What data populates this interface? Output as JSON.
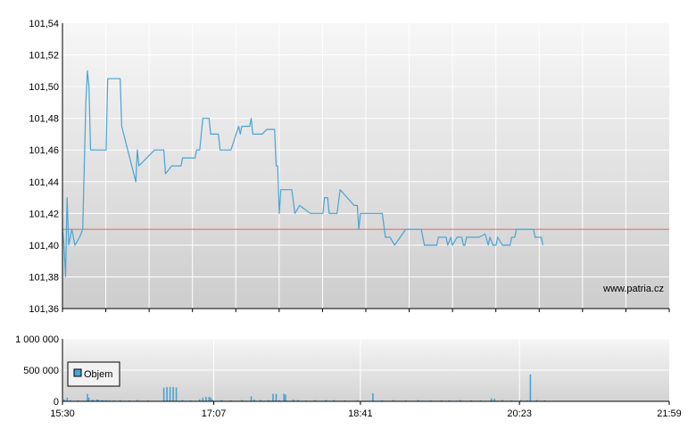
{
  "chart_data": [
    {
      "type": "line",
      "title": "",
      "xlabel": "",
      "ylabel": "",
      "ylim": [
        101.36,
        101.54
      ],
      "y_ticks": [
        "101,36",
        "101,38",
        "101,40",
        "101,42",
        "101,44",
        "101,46",
        "101,48",
        "101,50",
        "101,52",
        "101,54"
      ],
      "x_ticks": [
        "15:30",
        "17:07",
        "18:41",
        "20:23",
        "21:59"
      ],
      "grid": true,
      "watermark": "www.patria.cz",
      "reference_line": {
        "value": 101.41,
        "color": "#e06666"
      },
      "series": [
        {
          "color": "#4aa3d4",
          "points": [
            [
              "15:30",
              101.41
            ],
            [
              "15:31",
              101.4
            ],
            [
              "15:32",
              101.38
            ],
            [
              "15:33",
              101.43
            ],
            [
              "15:34",
              101.4
            ],
            [
              "15:36",
              101.41
            ],
            [
              "15:38",
              101.4
            ],
            [
              "15:41",
              101.405
            ],
            [
              "15:43",
              101.41
            ],
            [
              "15:45",
              101.49
            ],
            [
              "15:46",
              101.51
            ],
            [
              "15:47",
              101.5
            ],
            [
              "15:48",
              101.46
            ],
            [
              "15:58",
              101.46
            ],
            [
              "15:59",
              101.505
            ],
            [
              "16:07",
              101.505
            ],
            [
              "16:08",
              101.475
            ],
            [
              "16:17",
              101.44
            ],
            [
              "16:18",
              101.46
            ],
            [
              "16:19",
              101.45
            ],
            [
              "16:29",
              101.46
            ],
            [
              "16:35",
              101.46
            ],
            [
              "16:36",
              101.445
            ],
            [
              "16:40",
              101.45
            ],
            [
              "16:46",
              101.45
            ],
            [
              "16:47",
              101.455
            ],
            [
              "16:55",
              101.455
            ],
            [
              "16:56",
              101.46
            ],
            [
              "16:58",
              101.46
            ],
            [
              "17:00",
              101.48
            ],
            [
              "17:04",
              101.48
            ],
            [
              "17:05",
              101.47
            ],
            [
              "17:10",
              101.47
            ],
            [
              "17:11",
              101.46
            ],
            [
              "17:18",
              101.46
            ],
            [
              "17:23",
              101.475
            ],
            [
              "17:24",
              101.47
            ],
            [
              "17:25",
              101.475
            ],
            [
              "17:30",
              101.475
            ],
            [
              "17:31",
              101.48
            ],
            [
              "17:32",
              101.47
            ],
            [
              "17:33",
              101.47
            ],
            [
              "17:38",
              101.47
            ],
            [
              "17:41",
              101.473
            ],
            [
              "17:46",
              101.473
            ],
            [
              "17:47",
              101.45
            ],
            [
              "17:48",
              101.45
            ],
            [
              "17:49",
              101.42
            ],
            [
              "17:50",
              101.435
            ],
            [
              "17:57",
              101.435
            ],
            [
              "17:59",
              101.42
            ],
            [
              "18:02",
              101.425
            ],
            [
              "18:09",
              101.42
            ],
            [
              "18:17",
              101.42
            ],
            [
              "18:18",
              101.43
            ],
            [
              "18:20",
              101.43
            ],
            [
              "18:21",
              101.42
            ],
            [
              "18:26",
              101.42
            ],
            [
              "18:28",
              101.435
            ],
            [
              "18:37",
              101.425
            ],
            [
              "18:39",
              101.425
            ],
            [
              "18:40",
              101.41
            ],
            [
              "18:41",
              101.42
            ],
            [
              "18:55",
              101.42
            ],
            [
              "18:57",
              101.405
            ],
            [
              "19:00",
              101.405
            ],
            [
              "19:03",
              101.4
            ],
            [
              "19:10",
              101.41
            ],
            [
              "19:20",
              101.41
            ],
            [
              "19:22",
              101.4
            ],
            [
              "19:30",
              101.4
            ],
            [
              "19:31",
              101.405
            ],
            [
              "19:36",
              101.405
            ],
            [
              "19:37",
              101.4
            ],
            [
              "19:39",
              101.405
            ],
            [
              "19:40",
              101.4
            ],
            [
              "19:43",
              101.405
            ],
            [
              "19:46",
              101.405
            ],
            [
              "19:47",
              101.4
            ],
            [
              "19:48",
              101.4
            ],
            [
              "19:49",
              101.405
            ],
            [
              "19:57",
              101.405
            ],
            [
              "20:01",
              101.407
            ],
            [
              "20:03",
              101.4
            ],
            [
              "20:04",
              101.405
            ],
            [
              "20:06",
              101.4
            ],
            [
              "20:08",
              101.4
            ],
            [
              "20:09",
              101.405
            ],
            [
              "20:12",
              101.4
            ],
            [
              "20:17",
              101.4
            ],
            [
              "20:18",
              101.405
            ],
            [
              "20:20",
              101.405
            ],
            [
              "20:21",
              101.41
            ],
            [
              "20:32",
              101.41
            ],
            [
              "20:33",
              101.405
            ],
            [
              "20:37",
              101.405
            ],
            [
              "20:38",
              101.4
            ]
          ]
        }
      ]
    },
    {
      "type": "bar",
      "title": "",
      "xlabel": "",
      "ylabel": "",
      "ylim": [
        0,
        1000000
      ],
      "y_ticks": [
        "0",
        "500 000",
        "1 000 000"
      ],
      "x_ticks": [
        "15:30",
        "17:07",
        "18:41",
        "20:23",
        "21:59"
      ],
      "grid": true,
      "legend": {
        "position": "left",
        "entries": [
          "Objem"
        ]
      },
      "series": [
        {
          "name": "Objem",
          "color": "#4aa3d4",
          "points": [
            [
              "15:31",
              30000
            ],
            [
              "15:33",
              60000
            ],
            [
              "15:35",
              20000
            ],
            [
              "15:40",
              15000
            ],
            [
              "15:46",
              120000
            ],
            [
              "15:47",
              60000
            ],
            [
              "15:49",
              25000
            ],
            [
              "15:50",
              20000
            ],
            [
              "15:52",
              30000
            ],
            [
              "15:53",
              25000
            ],
            [
              "15:55",
              20000
            ],
            [
              "15:56",
              15000
            ],
            [
              "15:58",
              20000
            ],
            [
              "16:00",
              15000
            ],
            [
              "16:03",
              15000
            ],
            [
              "16:07",
              20000
            ],
            [
              "16:13",
              15000
            ],
            [
              "16:18",
              20000
            ],
            [
              "16:25",
              15000
            ],
            [
              "16:35",
              220000
            ],
            [
              "16:37",
              230000
            ],
            [
              "16:39",
              230000
            ],
            [
              "16:41",
              230000
            ],
            [
              "16:43",
              220000
            ],
            [
              "16:47",
              20000
            ],
            [
              "16:52",
              15000
            ],
            [
              "16:58",
              30000
            ],
            [
              "17:00",
              60000
            ],
            [
              "17:02",
              70000
            ],
            [
              "17:04",
              70000
            ],
            [
              "17:05",
              60000
            ],
            [
              "17:06",
              30000
            ],
            [
              "17:12",
              20000
            ],
            [
              "17:18",
              15000
            ],
            [
              "17:25",
              20000
            ],
            [
              "17:31",
              80000
            ],
            [
              "17:33",
              30000
            ],
            [
              "17:37",
              25000
            ],
            [
              "17:42",
              20000
            ],
            [
              "17:45",
              120000
            ],
            [
              "17:47",
              120000
            ],
            [
              "17:49",
              20000
            ],
            [
              "17:52",
              120000
            ],
            [
              "17:53",
              110000
            ],
            [
              "17:58",
              30000
            ],
            [
              "18:01",
              20000
            ],
            [
              "18:06",
              15000
            ],
            [
              "18:12",
              20000
            ],
            [
              "18:19",
              20000
            ],
            [
              "18:24",
              20000
            ],
            [
              "18:31",
              15000
            ],
            [
              "18:39",
              20000
            ],
            [
              "18:49",
              130000
            ],
            [
              "18:55",
              15000
            ],
            [
              "19:02",
              20000
            ],
            [
              "19:10",
              15000
            ],
            [
              "19:18",
              20000
            ],
            [
              "19:26",
              15000
            ],
            [
              "19:33",
              15000
            ],
            [
              "19:38",
              15000
            ],
            [
              "19:45",
              20000
            ],
            [
              "19:52",
              15000
            ],
            [
              "19:58",
              15000
            ],
            [
              "20:05",
              50000
            ],
            [
              "20:07",
              40000
            ],
            [
              "20:12",
              20000
            ],
            [
              "20:18",
              15000
            ],
            [
              "20:24",
              20000
            ],
            [
              "20:28",
              15000
            ],
            [
              "20:30",
              430000
            ],
            [
              "20:34",
              20000
            ],
            [
              "20:39",
              15000
            ]
          ]
        }
      ]
    }
  ]
}
